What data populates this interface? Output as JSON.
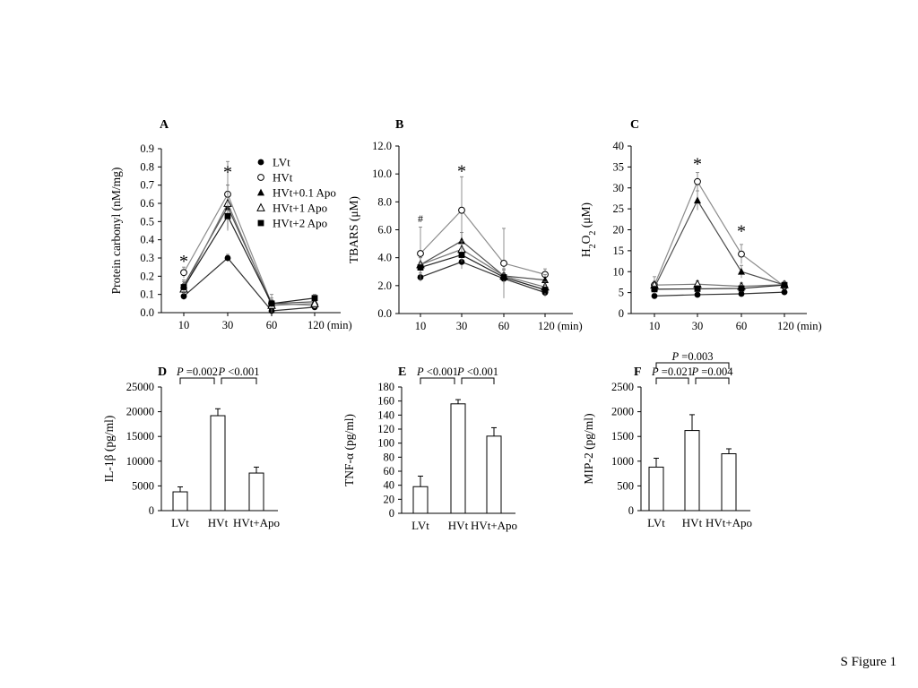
{
  "footer_label": "S Figure 1",
  "chart_data": [
    {
      "panel": "A",
      "type": "line",
      "ylabel": "Protein carbonyl (nM/mg)",
      "x": [
        10,
        30,
        60,
        120
      ],
      "x_tick_labels": [
        "10",
        "30",
        "60",
        "120 (min)"
      ],
      "y_ticks": [
        "0.0",
        "0.1",
        "0.2",
        "0.3",
        "0.4",
        "0.5",
        "0.6",
        "0.7",
        "0.8",
        "0.9"
      ],
      "ylim": [
        0,
        0.9
      ],
      "legend": "top-right",
      "series": [
        {
          "name": "LVt",
          "marker": "filled-circle",
          "color": "#333333",
          "values": [
            0.09,
            0.3,
            0.01,
            0.03
          ],
          "errors": [
            0.02,
            0.02,
            0.01,
            0.01
          ]
        },
        {
          "name": "HVt",
          "marker": "open-circle",
          "color": "#8c8c8c",
          "values": [
            0.22,
            0.65,
            0.05,
            0.04
          ],
          "errors": [
            0.03,
            0.18,
            0.05,
            0.02
          ]
        },
        {
          "name": "HVt+0.1 Apo",
          "marker": "filled-triangle",
          "color": "#4d4d4d",
          "values": [
            0.15,
            0.58,
            0.05,
            0.06
          ],
          "errors": [
            0.03,
            0.12,
            0.03,
            0.02
          ]
        },
        {
          "name": "HVt+1 Apo",
          "marker": "open-triangle",
          "color": "#777777",
          "values": [
            0.13,
            0.6,
            0.04,
            0.05
          ],
          "errors": [
            0.03,
            0.1,
            0.03,
            0.02
          ]
        },
        {
          "name": "HVt+2 Apo",
          "marker": "filled-square",
          "color": "#222222",
          "values": [
            0.14,
            0.53,
            0.05,
            0.08
          ],
          "errors": [
            0.03,
            0.08,
            0.02,
            0.02
          ]
        }
      ],
      "annotations": [
        {
          "x": 10,
          "y": 0.29,
          "text": "*"
        },
        {
          "x": 30,
          "y": 0.78,
          "text": "*"
        }
      ]
    },
    {
      "panel": "B",
      "type": "line",
      "ylabel": "TBARS (μM)",
      "x": [
        10,
        30,
        60,
        120
      ],
      "x_tick_labels": [
        "10",
        "30",
        "60",
        "120 (min)"
      ],
      "y_ticks": [
        "0.0",
        "2.0",
        "4.0",
        "6.0",
        "8.0",
        "10.0",
        "12.0"
      ],
      "ylim": [
        0,
        12
      ],
      "series": [
        {
          "name": "LVt",
          "marker": "filled-circle",
          "color": "#333333",
          "values": [
            2.6,
            3.7,
            2.5,
            1.5
          ],
          "errors": [
            0.3,
            0.5,
            0.4,
            0.3
          ]
        },
        {
          "name": "HVt",
          "marker": "open-circle",
          "color": "#8c8c8c",
          "values": [
            4.3,
            7.4,
            3.6,
            2.8
          ],
          "errors": [
            1.9,
            2.4,
            2.5,
            0.4
          ]
        },
        {
          "name": "HVt+0.1 Apo",
          "marker": "filled-triangle",
          "color": "#4d4d4d",
          "values": [
            3.5,
            5.2,
            2.7,
            2.4
          ],
          "errors": [
            0.5,
            0.6,
            0.5,
            0.4
          ]
        },
        {
          "name": "HVt+1 Apo",
          "marker": "open-triangle",
          "color": "#777777",
          "values": [
            3.5,
            4.6,
            2.7,
            1.9
          ],
          "errors": [
            0.5,
            0.6,
            0.5,
            0.4
          ]
        },
        {
          "name": "HVt+2 Apo",
          "marker": "filled-square",
          "color": "#222222",
          "values": [
            3.3,
            4.2,
            2.6,
            1.7
          ],
          "errors": [
            0.4,
            0.5,
            0.5,
            0.4
          ]
        }
      ],
      "annotations": [
        {
          "x": 10,
          "y": 6.8,
          "text": "#"
        },
        {
          "x": 30,
          "y": 10.3,
          "text": "*"
        }
      ]
    },
    {
      "panel": "C",
      "type": "line",
      "ylabel": "H₂O₂ (μM)",
      "x": [
        10,
        30,
        60,
        120
      ],
      "x_tick_labels": [
        "10",
        "30",
        "60",
        "120 (min)"
      ],
      "y_ticks": [
        "0",
        "5",
        "10",
        "15",
        "20",
        "25",
        "30",
        "35",
        "40"
      ],
      "ylim": [
        0,
        40
      ],
      "series": [
        {
          "name": "LVt",
          "marker": "filled-circle",
          "color": "#333333",
          "values": [
            4.2,
            4.5,
            4.7,
            5.1
          ],
          "errors": [
            0.5,
            0.5,
            0.5,
            0.5
          ]
        },
        {
          "name": "HVt",
          "marker": "open-circle",
          "color": "#8c8c8c",
          "values": [
            6.8,
            31.5,
            14.2,
            6.5
          ],
          "errors": [
            2.0,
            2.2,
            2.3,
            0.8
          ]
        },
        {
          "name": "HVt+0.1 Apo",
          "marker": "filled-triangle",
          "color": "#4d4d4d",
          "values": [
            6.2,
            27.0,
            10.0,
            6.8
          ],
          "errors": [
            1.5,
            2.3,
            1.5,
            0.8
          ]
        },
        {
          "name": "HVt+1 Apo",
          "marker": "open-triangle",
          "color": "#777777",
          "values": [
            6.8,
            7.0,
            6.5,
            6.9
          ],
          "errors": [
            0.8,
            0.8,
            0.8,
            0.8
          ]
        },
        {
          "name": "HVt+2 Apo",
          "marker": "filled-square",
          "color": "#222222",
          "values": [
            5.8,
            5.9,
            6.0,
            6.8
          ],
          "errors": [
            0.8,
            0.8,
            0.8,
            0.8
          ]
        }
      ],
      "annotations": [
        {
          "x": 30,
          "y": 36,
          "text": "*"
        },
        {
          "x": 60,
          "y": 20,
          "text": "*"
        }
      ]
    },
    {
      "panel": "D",
      "type": "bar",
      "ylabel": "IL-1β (pg/ml)",
      "categories": [
        "LVt",
        "HVt",
        "HVt+Apo"
      ],
      "values": [
        3800,
        19200,
        7600
      ],
      "errors": [
        1000,
        1400,
        1200
      ],
      "y_ticks": [
        "0",
        "5000",
        "10000",
        "15000",
        "20000",
        "25000"
      ],
      "ylim": [
        0,
        25000
      ],
      "comparisons": [
        {
          "from": 0,
          "to": 1,
          "level": 1,
          "prefix": "P",
          "text": " =0.002"
        },
        {
          "from": 1,
          "to": 2,
          "level": 1,
          "prefix": "P",
          "text": " <0.001"
        }
      ]
    },
    {
      "panel": "E",
      "type": "bar",
      "ylabel": "TNF-α (pg/ml)",
      "categories": [
        "LVt",
        "HVt",
        "HVt+Apo"
      ],
      "values": [
        38,
        156,
        110
      ],
      "errors": [
        15,
        6,
        12
      ],
      "y_ticks": [
        "0",
        "20",
        "40",
        "60",
        "80",
        "100",
        "120",
        "140",
        "160",
        "180"
      ],
      "ylim": [
        0,
        180
      ],
      "comparisons": [
        {
          "from": 0,
          "to": 1,
          "level": 1,
          "prefix": "P",
          "text": " <0.001"
        },
        {
          "from": 1,
          "to": 2,
          "level": 1,
          "prefix": "P",
          "text": " <0.001"
        }
      ]
    },
    {
      "panel": "F",
      "type": "bar",
      "ylabel": "MIP-2 (pg/ml)",
      "categories": [
        "LVt",
        "HVt",
        "HVt+Apo"
      ],
      "values": [
        880,
        1620,
        1150
      ],
      "errors": [
        180,
        320,
        100
      ],
      "y_ticks": [
        "0",
        "500",
        "1000",
        "1500",
        "2000",
        "2500"
      ],
      "ylim": [
        0,
        2500
      ],
      "comparisons": [
        {
          "from": 0,
          "to": 1,
          "level": 1,
          "prefix": "P",
          "text": " =0.021"
        },
        {
          "from": 1,
          "to": 2,
          "level": 1,
          "prefix": "P",
          "text": " =0.004"
        },
        {
          "from": 0,
          "to": 2,
          "level": 2,
          "prefix": "P",
          "text": " =0.003"
        }
      ]
    }
  ]
}
